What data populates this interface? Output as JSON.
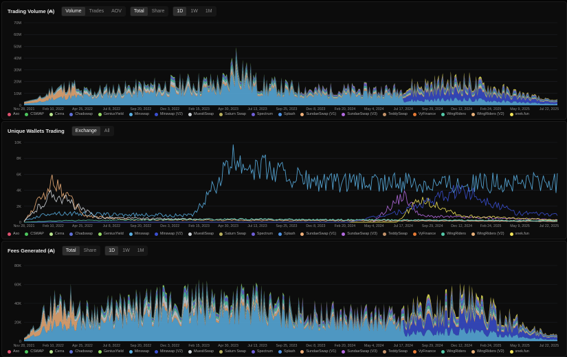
{
  "protocols": [
    {
      "name": "Axo",
      "color": "#e0516f"
    },
    {
      "name": "CSWAP",
      "color": "#4cc65d"
    },
    {
      "name": "Cerra",
      "color": "#b9e58f"
    },
    {
      "name": "Chadswap",
      "color": "#5f6fd6"
    },
    {
      "name": "GeniusYield",
      "color": "#9adf6a"
    },
    {
      "name": "Minswap",
      "color": "#5ab0e3"
    },
    {
      "name": "Minswap (V2)",
      "color": "#3a4fd0"
    },
    {
      "name": "MuesliSwap",
      "color": "#cfd4d9"
    },
    {
      "name": "Saturn Swap",
      "color": "#b8b05e"
    },
    {
      "name": "Spectrum",
      "color": "#6f5fd8"
    },
    {
      "name": "Splash",
      "color": "#4f95e8"
    },
    {
      "name": "SundaeSwap (V1)",
      "color": "#f0b07a"
    },
    {
      "name": "SundaeSwap (V3)",
      "color": "#b36ae0"
    },
    {
      "name": "TeddySwap",
      "color": "#c5946a"
    },
    {
      "name": "VyFinance",
      "color": "#e87b35"
    },
    {
      "name": "WingRiders",
      "color": "#54c9a9"
    },
    {
      "name": "WingRiders (V2)",
      "color": "#e9b17a"
    },
    {
      "name": "snek.fun",
      "color": "#f2e45a"
    }
  ],
  "panels": [
    {
      "title": "Trading Volume (₳)",
      "segs": [
        [
          "Volume",
          "Trades",
          "AOV"
        ],
        [
          "Total",
          "Share"
        ],
        [
          "1D",
          "1W",
          "1M"
        ]
      ]
    },
    {
      "title": "Unique Wallets Trading",
      "segs": [
        [
          "Exchange",
          "All"
        ]
      ]
    },
    {
      "title": "Fees Generated (₳)",
      "segs": [
        [
          "Total",
          "Share"
        ],
        [
          "1D",
          "1W",
          "1M"
        ]
      ]
    }
  ],
  "chart_data": [
    {
      "type": "area",
      "title": "Trading Volume (₳)",
      "x_ticks": [
        "Nov 28, 2021",
        "Feb 10, 2022",
        "Apr 25, 2022",
        "Jul 8, 2022",
        "Sep 20, 2022",
        "Dec 3, 2022",
        "Feb 15, 2023",
        "Apr 30, 2023",
        "Jul 13, 2023",
        "Sep 25, 2023",
        "Dec 8, 2023",
        "Feb 20, 2024",
        "May 4, 2024",
        "Jul 17, 2024",
        "Sep 29, 2024",
        "Dec 12, 2024",
        "Feb 24, 2025",
        "May 9, 2025",
        "Jul 22, 2025"
      ],
      "y_ticks": [
        "0",
        "10M",
        "20M",
        "30M",
        "40M",
        "50M",
        "60M",
        "70M"
      ],
      "ylim": [
        0,
        70000000
      ],
      "stacked": true,
      "notable_values": [
        {
          "x": "Dec 2021 – Feb 2022",
          "y": 7000000
        },
        {
          "x": "Feb 10, 2022",
          "y": 14000000
        },
        {
          "x": "Apr 30, 2023",
          "y": 33000000
        },
        {
          "x": "May 2023",
          "y": 67000000
        },
        {
          "x": "Jul 13, 2023",
          "y": 30000000
        },
        {
          "x": "Dec 8, 2023",
          "y": 20000000
        },
        {
          "x": "Jul 17, 2024",
          "y": 20000000
        },
        {
          "x": "Dec 12, 2024",
          "y": 27000000
        },
        {
          "x": "Jul 22, 2025",
          "y": 5000000
        }
      ]
    },
    {
      "type": "line",
      "title": "Unique Wallets Trading",
      "x_ticks": [
        "Nov 28, 2021",
        "Feb 10, 2022",
        "Apr 25, 2022",
        "Jul 8, 2022",
        "Sep 20, 2022",
        "Dec 3, 2022",
        "Feb 15, 2023",
        "Apr 30, 2023",
        "Jul 13, 2023",
        "Sep 25, 2023",
        "Dec 8, 2023",
        "Feb 20, 2024",
        "May 4, 2024",
        "Jul 17, 2024",
        "Sep 29, 2024",
        "Dec 12, 2024",
        "Feb 24, 2025",
        "May 9, 2025",
        "Jul 22, 2025"
      ],
      "y_ticks": [
        "0",
        "2K",
        "4K",
        "6K",
        "8K",
        "10K"
      ],
      "ylim": [
        0,
        10000
      ],
      "notable_values": [
        {
          "x": "Feb 10, 2022",
          "series": "SundaeSwap (V1)",
          "y": 5500
        },
        {
          "x": "Feb 10, 2022",
          "series": "MuesliSwap",
          "y": 3800
        },
        {
          "x": "May 2023",
          "series": "Minswap",
          "y": 8300
        },
        {
          "x": "Dec 8, 2023",
          "series": "Minswap",
          "y": 5200
        },
        {
          "x": "Jul 17, 2024",
          "series": "SundaeSwap (V3)",
          "y": 3600
        },
        {
          "x": "Sep 1, 2024",
          "series": "snek.fun",
          "y": 3200
        },
        {
          "x": "Dec 12, 2024",
          "series": "Minswap (V2)",
          "y": 4300
        },
        {
          "x": "Jul 22, 2025",
          "series": "Minswap (V2)",
          "y": 1000
        }
      ]
    },
    {
      "type": "area",
      "title": "Fees Generated (₳)",
      "x_ticks": [
        "Nov 28, 2021",
        "Feb 10, 2022",
        "Apr 25, 2022",
        "Jul 8, 2022",
        "Sep 20, 2022",
        "Dec 3, 2022",
        "Feb 15, 2023",
        "Apr 30, 2023",
        "Jul 13, 2023",
        "Sep 25, 2023",
        "Dec 8, 2023",
        "Feb 20, 2024",
        "May 4, 2024",
        "Jul 17, 2024",
        "Sep 29, 2024",
        "Dec 12, 2024",
        "Feb 24, 2025",
        "May 9, 2025",
        "Jul 22, 2025"
      ],
      "y_ticks": [
        "0",
        "20K",
        "40K",
        "60K",
        "80K"
      ],
      "ylim": [
        0,
        80000
      ],
      "stacked": true,
      "notable_values": [
        {
          "x": "Feb 10, 2022",
          "y": 40000
        },
        {
          "x": "May 2023",
          "y": 75000
        },
        {
          "x": "Dec 8, 2023",
          "y": 45000
        },
        {
          "x": "Jul 17, 2024",
          "y": 40000
        },
        {
          "x": "Dec 12, 2024",
          "y": 58000
        },
        {
          "x": "Jul 22, 2025",
          "y": 8000
        }
      ]
    }
  ]
}
